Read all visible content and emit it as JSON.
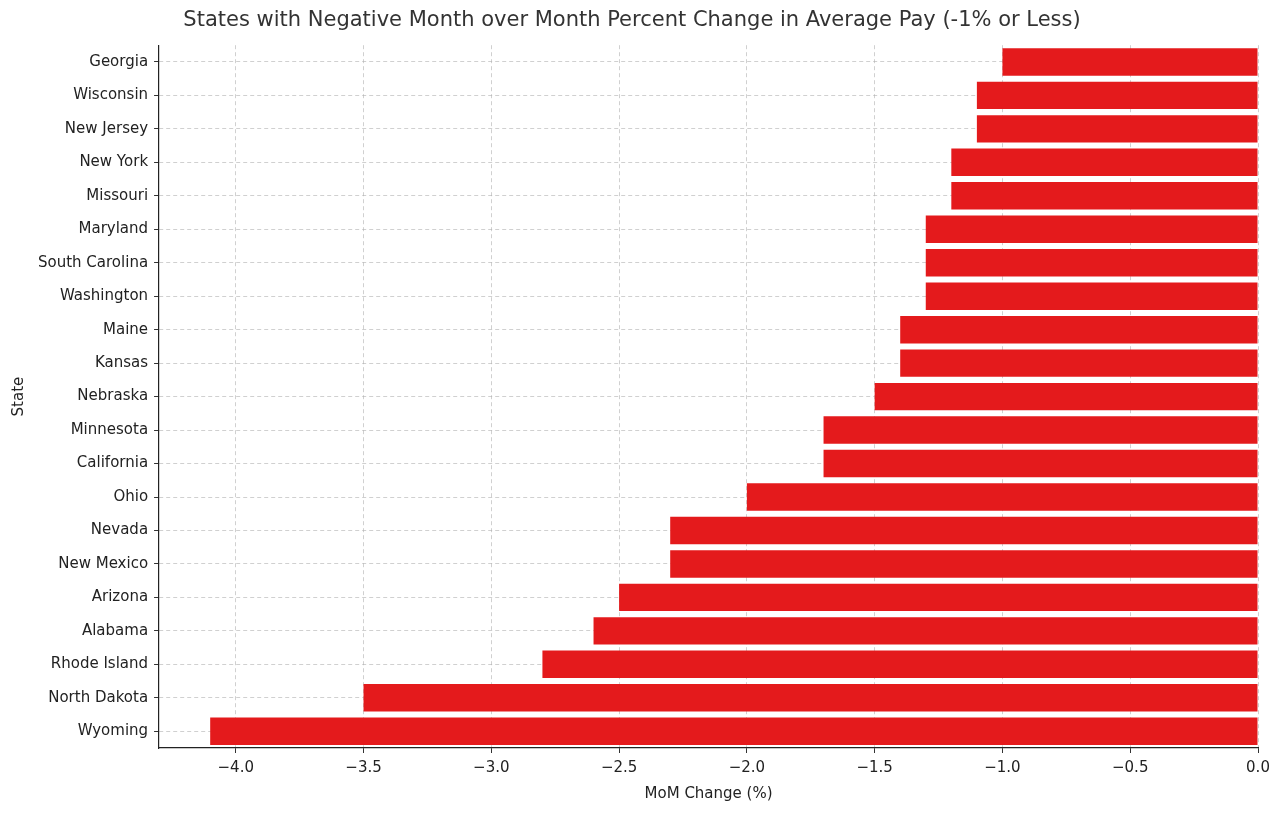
{
  "chart_data": {
    "type": "bar",
    "orientation": "horizontal",
    "title": "States with Negative Month over Month Percent Change in Average Pay (-1% or Less)",
    "xlabel": "MoM Change (%)",
    "ylabel": "State",
    "categories": [
      "Georgia",
      "Wisconsin",
      "New Jersey",
      "New York",
      "Missouri",
      "Maryland",
      "South Carolina",
      "Washington",
      "Maine",
      "Kansas",
      "Nebraska",
      "Minnesota",
      "California",
      "Ohio",
      "Nevada",
      "New Mexico",
      "Arizona",
      "Alabama",
      "Rhode Island",
      "North Dakota",
      "Wyoming"
    ],
    "values": [
      -1.0,
      -1.1,
      -1.1,
      -1.2,
      -1.2,
      -1.3,
      -1.3,
      -1.3,
      -1.4,
      -1.4,
      -1.5,
      -1.7,
      -1.7,
      -2.0,
      -2.3,
      -2.3,
      -2.5,
      -2.6,
      -2.8,
      -3.5,
      -4.1
    ],
    "color": "#e41a1c",
    "xlim": [
      -4.3,
      0
    ],
    "xticks": [
      {
        "value": -4,
        "label": "−4.0"
      },
      {
        "value": -3.5,
        "label": "−3.5"
      },
      {
        "value": -3,
        "label": "−3.0"
      },
      {
        "value": -2.5,
        "label": "−2.5"
      },
      {
        "value": -2,
        "label": "−2.0"
      },
      {
        "value": -1.5,
        "label": "−1.5"
      },
      {
        "value": -1,
        "label": "−1.0"
      },
      {
        "value": -0.5,
        "label": "−0.5"
      },
      {
        "value": 0,
        "label": "0.0"
      }
    ],
    "grid": true
  }
}
